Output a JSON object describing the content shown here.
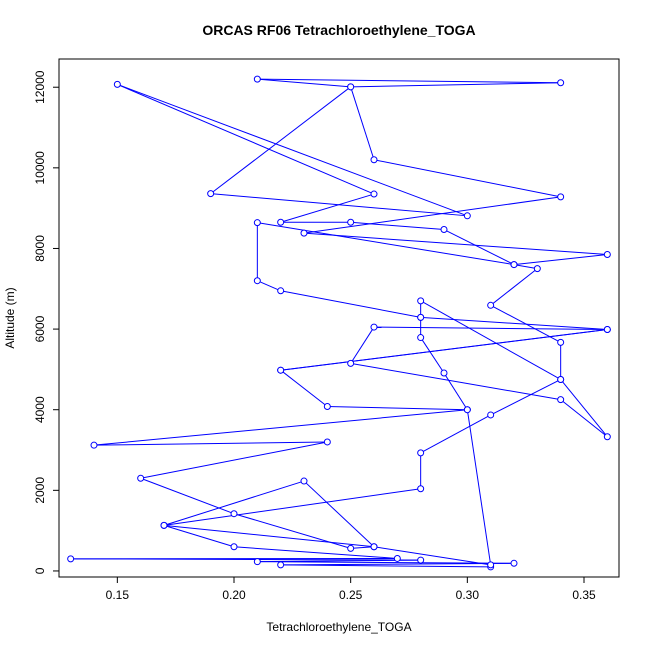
{
  "chart_data": {
    "type": "line",
    "title": "ORCAS RF06 Tetrachloroethylene_TOGA",
    "xlabel": "Tetrachloroethylene_TOGA",
    "ylabel": "Altitude (m)",
    "xlim": [
      0.125,
      0.365
    ],
    "ylim": [
      -150,
      12700
    ],
    "xticks": [
      0.15,
      0.2,
      0.25,
      0.3,
      0.35
    ],
    "xtick_labels": [
      "0.15",
      "0.20",
      "0.25",
      "0.30",
      "0.35"
    ],
    "yticks": [
      0,
      2000,
      4000,
      6000,
      8000,
      10000,
      12000
    ],
    "ytick_labels": [
      "0",
      "2000",
      "4000",
      "6000",
      "8000",
      "10000",
      "12000"
    ],
    "grid": false,
    "colors": {
      "series": "#0000ff",
      "axes": "#000000"
    },
    "series": [
      {
        "points": [
          [
            0.31,
            100
          ],
          [
            0.22,
            150
          ],
          [
            0.32,
            190
          ],
          [
            0.21,
            230
          ],
          [
            0.28,
            270
          ],
          [
            0.13,
            300
          ],
          [
            0.27,
            310
          ],
          [
            0.2,
            600
          ],
          [
            0.17,
            1130
          ],
          [
            0.26,
            600
          ],
          [
            0.25,
            560
          ],
          [
            0.2,
            1420
          ],
          [
            0.16,
            2300
          ],
          [
            0.24,
            3200
          ],
          [
            0.14,
            3120
          ],
          [
            0.3,
            4000
          ],
          [
            0.24,
            4080
          ],
          [
            0.22,
            4980
          ],
          [
            0.36,
            5990
          ],
          [
            0.26,
            6050
          ],
          [
            0.25,
            5150
          ],
          [
            0.34,
            4250
          ],
          [
            0.36,
            3330
          ],
          [
            0.34,
            4750
          ],
          [
            0.31,
            3870
          ],
          [
            0.28,
            2930
          ],
          [
            0.28,
            2040
          ],
          [
            0.17,
            1130
          ],
          [
            0.23,
            2230
          ],
          [
            0.26,
            600
          ],
          [
            0.31,
            150
          ],
          [
            0.3,
            4000
          ],
          [
            0.29,
            4910
          ],
          [
            0.28,
            5790
          ],
          [
            0.28,
            6290
          ],
          [
            0.22,
            6950
          ],
          [
            0.21,
            7200
          ],
          [
            0.21,
            8640
          ],
          [
            0.32,
            7600
          ],
          [
            0.36,
            7850
          ],
          [
            0.23,
            8380
          ],
          [
            0.34,
            9280
          ],
          [
            0.26,
            10200
          ],
          [
            0.25,
            12010
          ],
          [
            0.34,
            12110
          ],
          [
            0.21,
            12200
          ],
          [
            0.25,
            12010
          ],
          [
            0.19,
            9360
          ],
          [
            0.3,
            8810
          ],
          [
            0.15,
            12070
          ],
          [
            0.26,
            9350
          ],
          [
            0.22,
            8650
          ],
          [
            0.25,
            8650
          ],
          [
            0.29,
            8470
          ],
          [
            0.32,
            7600
          ],
          [
            0.33,
            7500
          ],
          [
            0.31,
            6590
          ],
          [
            0.34,
            5670
          ],
          [
            0.34,
            4750
          ],
          [
            0.28,
            6700
          ],
          [
            0.28,
            6290
          ],
          [
            0.36,
            5990
          ],
          [
            0.22,
            4980
          ]
        ]
      }
    ]
  }
}
